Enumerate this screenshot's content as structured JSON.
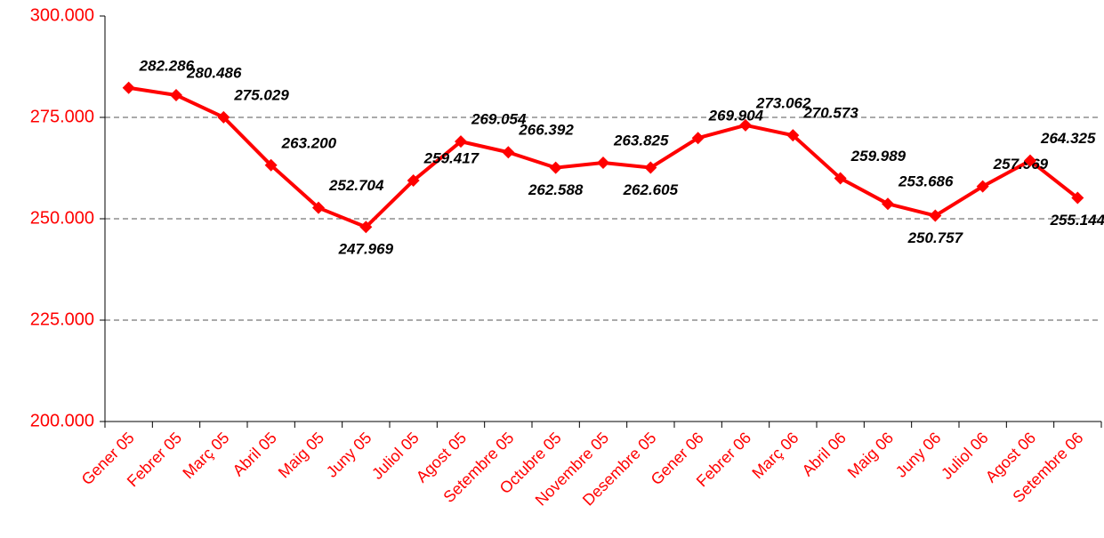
{
  "chart_data": {
    "type": "line",
    "categories": [
      "Gener 05",
      "Febrer 05",
      "Març 05",
      "Abril 05",
      "Maig 05",
      "Juny 05",
      "Juliol 05",
      "Agost 05",
      "Setembre 05",
      "Octubre 05",
      "Novembre 05",
      "Desembre 05",
      "Gener 06",
      "Febrer 06",
      "Març 06",
      "Abril 06",
      "Maig 06",
      "Juny 06",
      "Juliol 06",
      "Agost 06",
      "Setembre 06"
    ],
    "series": [
      {
        "color": "#ff0000",
        "values": [
          282286,
          280486,
          275029,
          263200,
          252704,
          247969,
          259417,
          269054,
          266392,
          262588,
          263825,
          262605,
          269904,
          273062,
          270573,
          259989,
          253686,
          250757,
          257969,
          264325,
          255144
        ],
        "value_labels": [
          "282.286",
          "280.486",
          "275.029",
          "263.200",
          "252.704",
          "247.969",
          "259.417",
          "269.054",
          "266.392",
          "262.588",
          "263.825",
          "262.605",
          "269.904",
          "273.062",
          "270.573",
          "259.989",
          "253.686",
          "250.757",
          "257.969",
          "264.325",
          "255.144"
        ]
      }
    ],
    "ylim": [
      200000,
      300000
    ],
    "yticks": [
      {
        "value": 200000,
        "label": "200.000"
      },
      {
        "value": 225000,
        "label": "225.000"
      },
      {
        "value": 250000,
        "label": "250.000"
      },
      {
        "value": 275000,
        "label": "275.000"
      },
      {
        "value": 300000,
        "label": "300.000"
      }
    ],
    "grid": true
  }
}
